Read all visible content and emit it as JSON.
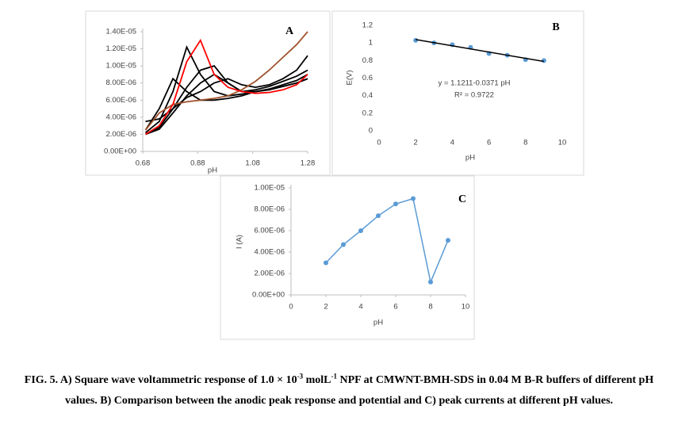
{
  "chart_data": [
    {
      "type": "line",
      "panel_label": "A",
      "xlabel": "pH",
      "x": [
        0.69,
        0.74,
        0.79,
        0.84,
        0.89,
        0.94,
        0.99,
        1.04,
        1.09,
        1.14,
        1.19,
        1.24,
        1.28
      ],
      "series": [
        {
          "color": "#000000",
          "values": [
            2.5e-06,
            5e-06,
            8.5e-06,
            7e-06,
            6e-06,
            6e-06,
            6.2e-06,
            6.5e-06,
            7e-06,
            7.2e-06,
            7.6e-06,
            8e-06,
            8.5e-06
          ]
        },
        {
          "color": "#000000",
          "values": [
            2.2e-06,
            3.5e-06,
            7e-06,
            1.22e-05,
            9e-06,
            7e-06,
            6.5e-06,
            6.7e-06,
            7e-06,
            7.2e-06,
            7.6e-06,
            8e-06,
            8.5e-06
          ]
        },
        {
          "color": "#000000",
          "values": [
            2e-06,
            2.8e-06,
            5e-06,
            7.5e-06,
            9.5e-06,
            1e-05,
            8e-06,
            7e-06,
            7e-06,
            7.3e-06,
            7.8e-06,
            8.3e-06,
            9e-06
          ]
        },
        {
          "color": "#000000",
          "values": [
            2e-06,
            2.6e-06,
            4.5e-06,
            6.5e-06,
            8e-06,
            9e-06,
            8e-06,
            7e-06,
            7.2e-06,
            7.6e-06,
            8.2e-06,
            8.8e-06,
            9.5e-06
          ]
        },
        {
          "color": "#000000",
          "values": [
            3.5e-06,
            3.8e-06,
            5e-06,
            6.3e-06,
            7e-06,
            8e-06,
            8.5e-06,
            7.8e-06,
            7.5e-06,
            7.8e-06,
            8.5e-06,
            9.5e-06,
            1.12e-05
          ]
        },
        {
          "color": "#a0522d",
          "values": [
            2.5e-06,
            4.5e-06,
            5.5e-06,
            5.8e-06,
            6e-06,
            6.2e-06,
            6.5e-06,
            7.2e-06,
            8.2e-06,
            9.5e-06,
            1.1e-05,
            1.25e-05,
            1.4e-05
          ]
        },
        {
          "color": "#ff0000",
          "values": [
            2e-06,
            3e-06,
            5.5e-06,
            1.05e-05,
            1.3e-05,
            9e-06,
            7.5e-06,
            7e-06,
            6.8e-06,
            6.9e-06,
            7.2e-06,
            7.8e-06,
            9e-06
          ]
        }
      ],
      "xlim": [
        0.68,
        1.28
      ],
      "xticks": [
        0.68,
        0.88,
        1.08,
        1.28
      ],
      "ylim": [
        0,
        1.4e-05
      ],
      "yticks": [
        {
          "value": 0,
          "label": "0.00E+00"
        },
        {
          "value": 2e-06,
          "label": "2.00E-06"
        },
        {
          "value": 4e-06,
          "label": "4.00E-06"
        },
        {
          "value": 6e-06,
          "label": "6.00E-06"
        },
        {
          "value": 8e-06,
          "label": "8.00E-06"
        },
        {
          "value": 1e-05,
          "label": "1.00E-05"
        },
        {
          "value": 1.2e-05,
          "label": "1.20E-05"
        },
        {
          "value": 1.4e-05,
          "label": "1.40E-05"
        }
      ],
      "axis_lines": true
    },
    {
      "type": "scatter",
      "panel_label": "B",
      "xlabel": "pH",
      "ylabel": "E(V)",
      "annotations": [
        "y = 1.1211-0.0371 pH",
        "R² = 0.9722"
      ],
      "x": [
        2,
        3,
        4,
        5,
        6,
        7,
        8,
        9
      ],
      "values": [
        1.03,
        1.0,
        0.98,
        0.95,
        0.88,
        0.86,
        0.81,
        0.8
      ],
      "color": "#5b9bd5",
      "trendline_color": "#000000",
      "xlim": [
        0,
        10
      ],
      "xticks": [
        0,
        2,
        4,
        6,
        8,
        10
      ],
      "ylim": [
        0,
        1.2
      ],
      "yticks": [
        0,
        0.2,
        0.4,
        0.6,
        0.8,
        1,
        1.2
      ],
      "axis_lines": false
    },
    {
      "type": "line",
      "panel_label": "C",
      "xlabel": "pH",
      "ylabel": "I (A)",
      "x": [
        2,
        3,
        4,
        5,
        6,
        7,
        8,
        9
      ],
      "values": [
        3e-06,
        4.7e-06,
        6e-06,
        7.4e-06,
        8.5e-06,
        9e-06,
        1.2e-06,
        5.1e-06
      ],
      "color": "#5b9bd5",
      "markers": true,
      "xlim": [
        0,
        10
      ],
      "xticks": [
        0,
        2,
        4,
        6,
        8,
        10
      ],
      "ylim": [
        0,
        1e-05
      ],
      "yticks": [
        {
          "value": 0,
          "label": "0.00E+00"
        },
        {
          "value": 2e-06,
          "label": "2.00E-06"
        },
        {
          "value": 4e-06,
          "label": "4.00E-06"
        },
        {
          "value": 6e-06,
          "label": "6.00E-06"
        },
        {
          "value": 8e-06,
          "label": "8.00E-06"
        },
        {
          "value": 1e-05,
          "label": "1.00E-05"
        }
      ],
      "axis_lines": true
    }
  ],
  "caption": [
    "FIG. 5. A) Square wave voltammetric response of 1.0 × 10",
    "-3",
    " molL",
    "-1",
    " NPF at CMWNT-BMH-SDS in 0.04 M B-R buffers of different pH values. B) Comparison between the anodic peak response and potential and C) peak currents at different pH values."
  ]
}
